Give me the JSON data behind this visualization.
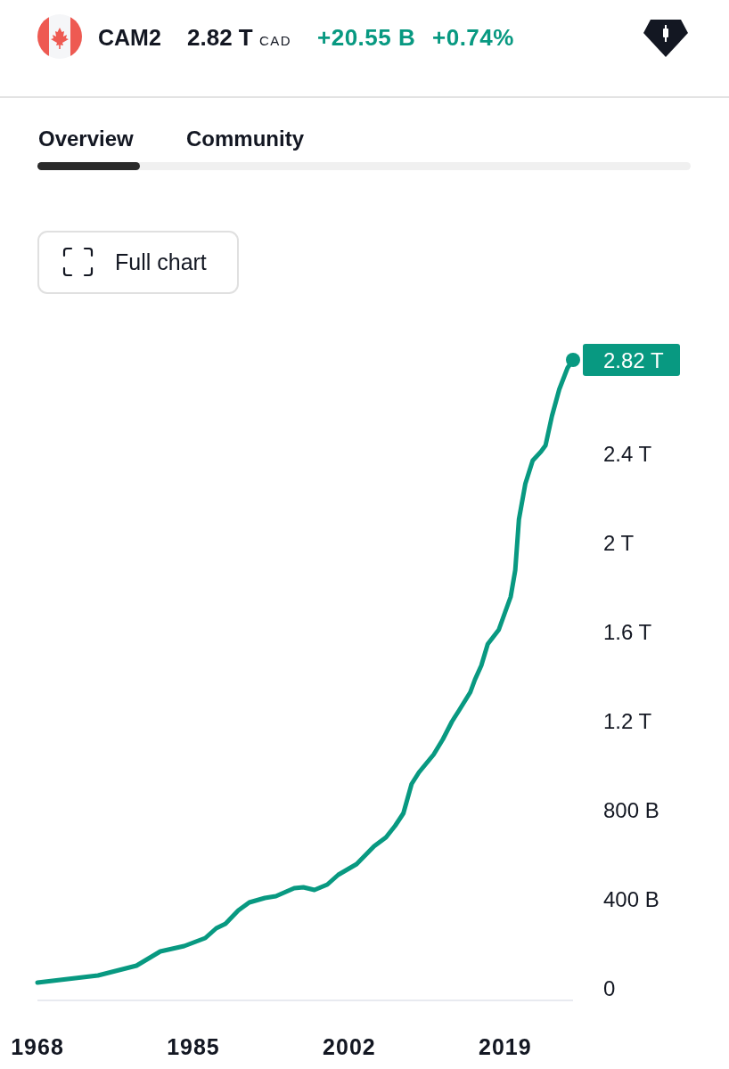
{
  "chart_data": {
    "type": "line",
    "title": "CAM2",
    "annotations": [
      "2.82 T",
      "CAD",
      "+20.55 B",
      "+0.74%",
      "Overview",
      "Community",
      "Full chart"
    ],
    "x": [
      1968.0,
      1974.6,
      1978.8,
      1981.4,
      1984.0,
      1986.3,
      1987.5,
      1988.5,
      1989.9,
      1991.1,
      1992.8,
      1994.0,
      1996.0,
      1997.0,
      1998.2,
      1999.6,
      2000.8,
      2002.8,
      2004.7,
      2006.0,
      2007.0,
      2007.9,
      2008.8,
      2009.6,
      2011.2,
      2012.2,
      2013.2,
      2014.0,
      2015.2,
      2015.7,
      2016.4,
      2017.1,
      2018.3,
      2019.0,
      2019.6,
      2020.1,
      2020.5,
      2021.2,
      2022.0,
      2022.9,
      2023.4,
      2024.1,
      2024.9,
      2025.8,
      2026.4
    ],
    "series": [
      {
        "color": "#089981",
        "values": [
          24000000000,
          56000000000,
          100000000000,
          164000000000,
          188000000000,
          224000000000,
          268000000000,
          288000000000,
          348000000000,
          384000000000,
          404000000000,
          412000000000,
          448000000000,
          452000000000,
          440000000000,
          464000000000,
          508000000000,
          556000000000,
          636000000000,
          676000000000,
          728000000000,
          784000000000,
          916000000000,
          968000000000,
          1048000000000,
          1116000000000,
          1196000000000,
          1248000000000,
          1328000000000,
          1384000000000,
          1448000000000,
          1544000000000,
          1608000000000,
          1688000000000,
          1756000000000,
          1876000000000,
          2104000000000,
          2264000000000,
          2368000000000,
          2408000000000,
          2436000000000,
          2568000000000,
          2688000000000,
          2784000000000,
          2820000000000
        ]
      }
    ],
    "xlim": [
      1968,
      2026.4
    ],
    "xticks": [
      1968,
      1985,
      2002,
      2019
    ],
    "ylim": [
      0,
      2820000000000
    ],
    "yticks": [
      0,
      {
        "value": 400000000000,
        "label": "400 B"
      },
      {
        "value": 800000000000,
        "label": "800 B"
      },
      {
        "value": 1200000000000,
        "label": "1.2 T"
      },
      {
        "value": 1600000000000,
        "label": "1.6 T"
      },
      {
        "value": 2000000000000,
        "label": "2 T"
      },
      {
        "value": 2400000000000,
        "label": "2.4 T"
      },
      {
        "value": 2820000000000,
        "label": "2.82 T"
      }
    ]
  }
}
